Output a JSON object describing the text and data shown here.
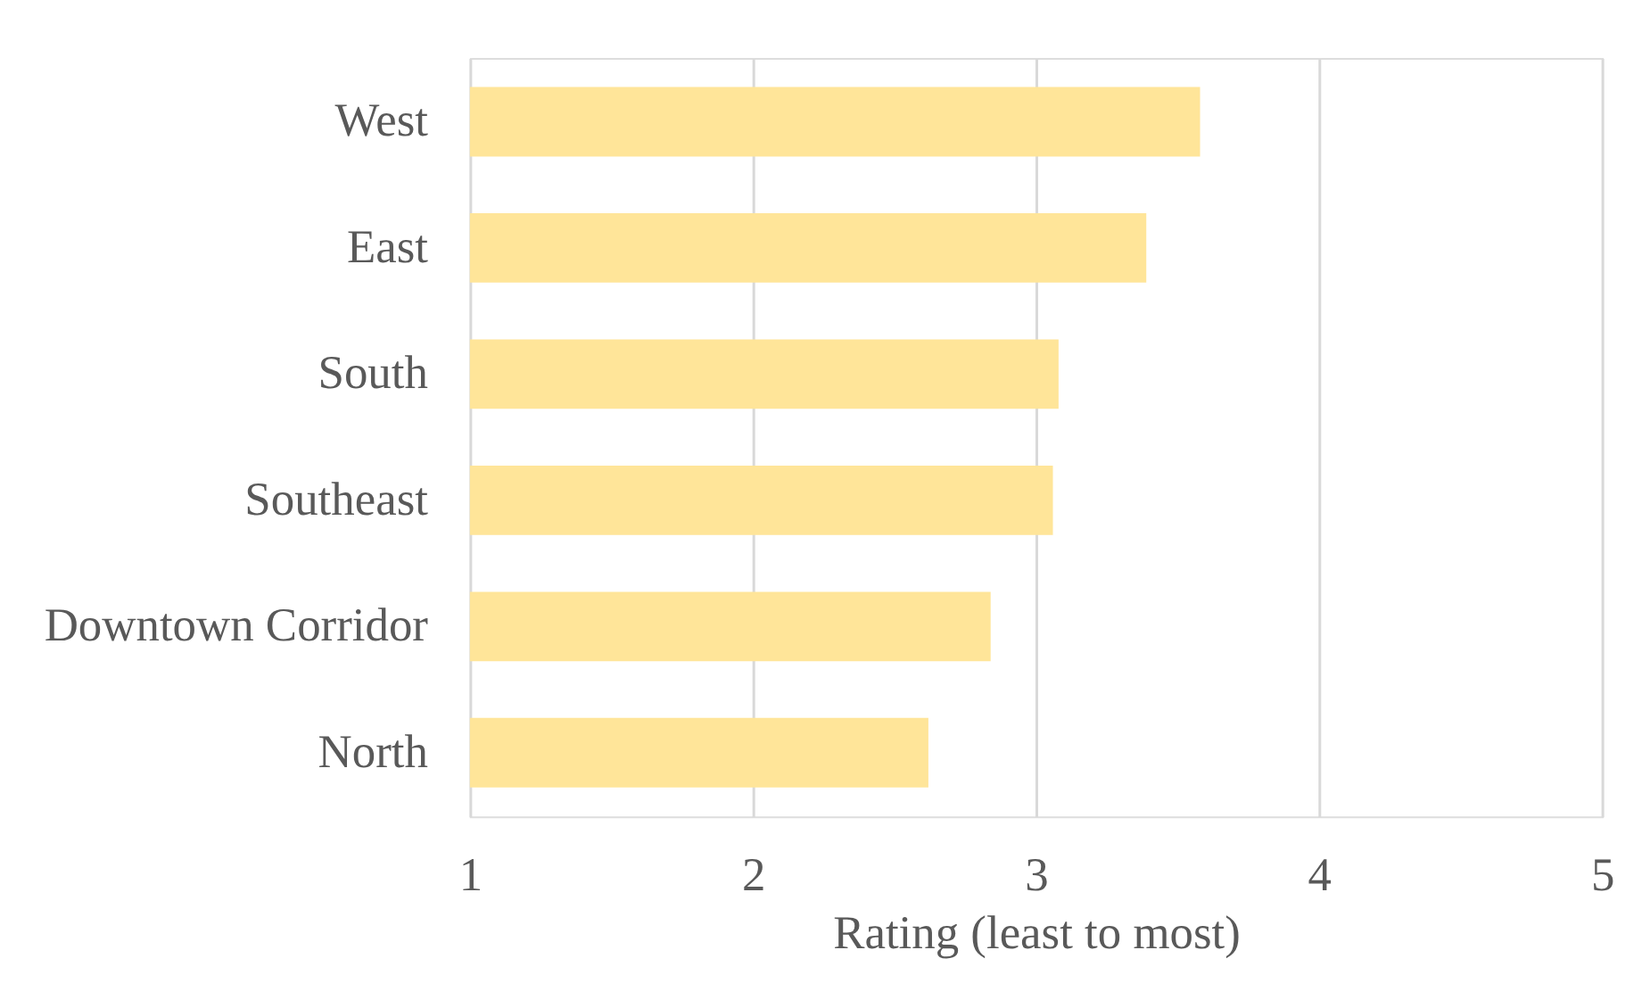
{
  "chart_data": {
    "type": "bar",
    "orientation": "horizontal",
    "categories": [
      "West",
      "East",
      "South",
      "Southeast",
      "Downtown Corridor",
      "North"
    ],
    "values": [
      3.58,
      3.39,
      3.08,
      3.06,
      2.84,
      2.62
    ],
    "color": "#ffe599",
    "xlabel": "Rating (least to most)",
    "xlim": [
      1,
      5
    ],
    "xticks": [
      1,
      2,
      3,
      4,
      5
    ],
    "grid": "x"
  }
}
